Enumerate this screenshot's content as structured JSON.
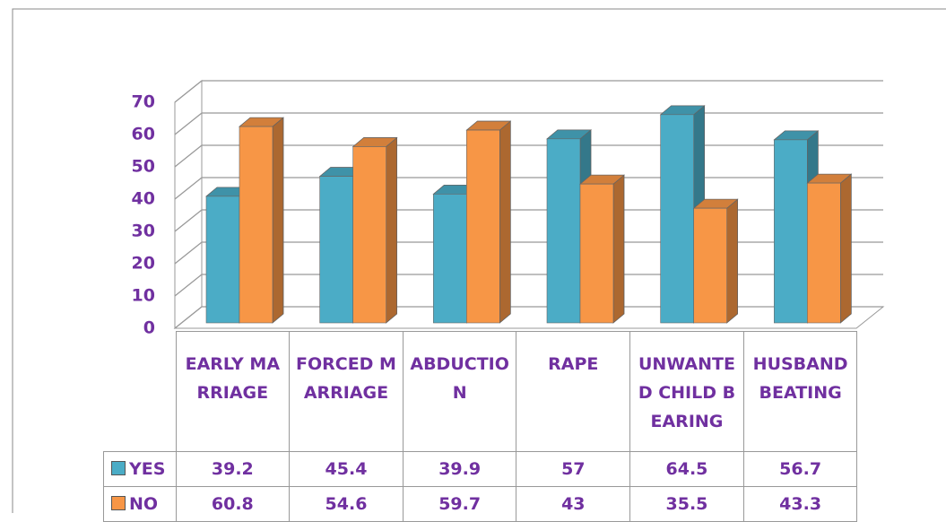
{
  "chart_data": {
    "type": "bar",
    "categories": [
      "EARLY MARRIAGE",
      "FORCED MARRIAGE",
      "ABDUCTION",
      "RAPE",
      "UNWANTED CHILD BEARING",
      "HUSBAND BEATING"
    ],
    "series": [
      {
        "name": "YES",
        "color": "#4bacc6",
        "values": [
          39.2,
          45.4,
          39.9,
          57,
          64.5,
          56.7
        ]
      },
      {
        "name": "NO",
        "color": "#f79646",
        "values": [
          60.8,
          54.6,
          59.7,
          43,
          35.5,
          43.3
        ]
      }
    ],
    "ylim": [
      0,
      70
    ],
    "yticks": [
      0,
      10,
      20,
      30,
      40,
      50,
      60,
      70
    ],
    "grid": true
  }
}
